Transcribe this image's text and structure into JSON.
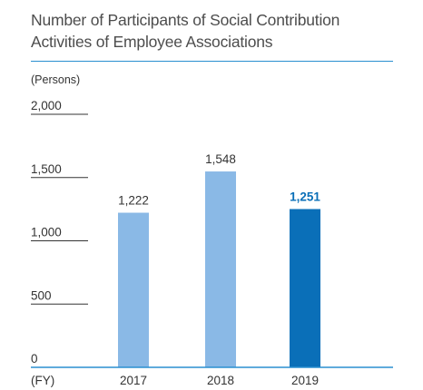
{
  "chart_data": {
    "type": "bar",
    "title": "Number of Participants of Social Contribution Activities of Employee Associations",
    "title_lines": [
      "Number of Participants of Social Contribution",
      "Activities of Employee Associations"
    ],
    "ylabel": "(Persons)",
    "xlabel": "(FY)",
    "categories": [
      "2017",
      "2018",
      "2019"
    ],
    "values": [
      1222,
      1548,
      1251
    ],
    "value_labels": [
      "1,222",
      "1,548",
      "1,251"
    ],
    "highlight_index": 2,
    "ylim": [
      0,
      2000
    ],
    "yticks": [
      0,
      500,
      1000,
      1500,
      2000
    ],
    "ytick_labels": [
      "0",
      "500",
      "1,000",
      "1,500",
      "2,000"
    ],
    "bar_color": "#8ab9e6",
    "highlight_color": "#0a6fb8",
    "axis_color": "#2a8fd0",
    "grid": false
  }
}
